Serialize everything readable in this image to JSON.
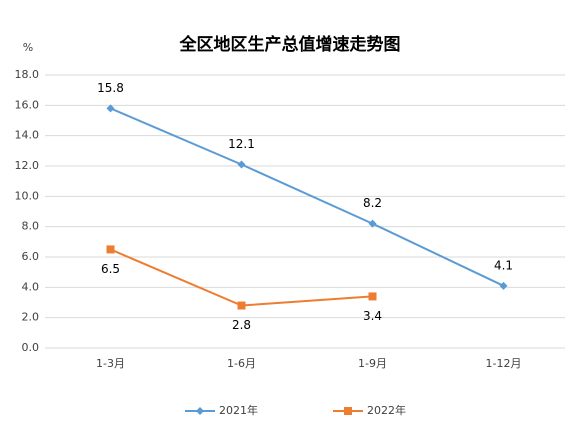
{
  "chart_data": {
    "type": "line",
    "title": "全区地区生产总值增速走势图",
    "y_unit": "%",
    "categories": [
      "1-3月",
      "1-6月",
      "1-9月",
      "1-12月"
    ],
    "series": [
      {
        "name": "2021年",
        "color": "#5b9bd5",
        "marker": "diamond",
        "label_position": "above",
        "values": [
          15.8,
          12.1,
          8.2,
          4.1
        ]
      },
      {
        "name": "2022年",
        "color": "#ed7d31",
        "marker": "square",
        "label_position": "below",
        "values": [
          6.5,
          2.8,
          3.4,
          null
        ]
      }
    ],
    "ylim": [
      0,
      18
    ],
    "yticks": [
      {
        "value": 0,
        "label": "0.0"
      },
      {
        "value": 2,
        "label": "2.0"
      },
      {
        "value": 4,
        "label": "4.0"
      },
      {
        "value": 6,
        "label": "6.0"
      },
      {
        "value": 8,
        "label": "8.0"
      },
      {
        "value": 10,
        "label": "10.0"
      },
      {
        "value": 12,
        "label": "12.0"
      },
      {
        "value": 14,
        "label": "14.0"
      },
      {
        "value": 16,
        "label": "16.0"
      },
      {
        "value": 18,
        "label": "18.0"
      }
    ],
    "grid": true,
    "legend": "bottom"
  }
}
